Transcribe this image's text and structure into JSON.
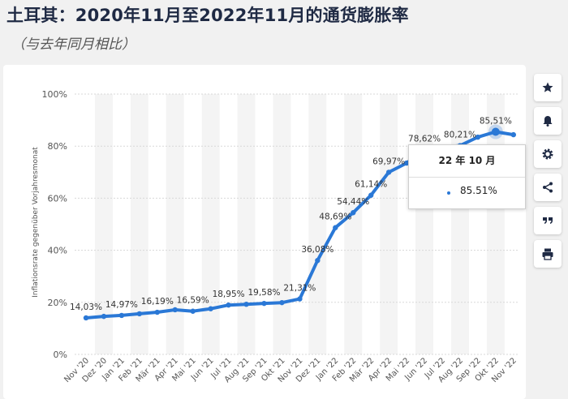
{
  "title": "土耳其：2020年11月至2022年11月的通货膨胀率",
  "subtitle": "（与去年同月相比）",
  "tooltip": {
    "title": "22 年 10 月",
    "value": "85.51%"
  },
  "toolbar": {
    "icons": [
      "star-icon",
      "bell-icon",
      "gear-icon",
      "share-icon",
      "quote-icon",
      "print-icon"
    ]
  },
  "colors": {
    "line": "#2a78d6",
    "band": "#f4f4f4",
    "grid": "#d8d8d8"
  },
  "chart_data": {
    "type": "line",
    "ylabel": "Inflationsrate gegenüber Vorjahresmonat",
    "ylim": [
      0,
      100
    ],
    "yticks": [
      "0%",
      "20%",
      "40%",
      "60%",
      "80%",
      "100%"
    ],
    "grid": true,
    "categories": [
      "Nov '20",
      "Dez '20",
      "Jan '21",
      "Feb '21",
      "Mär '21",
      "Apr '21",
      "Mai '21",
      "Jun '21",
      "Jul '21",
      "Aug '21",
      "Sep '21",
      "Okt '21",
      "Nov '21",
      "Dez '21",
      "Jan '22",
      "Feb '22",
      "Mär '22",
      "Apr '22",
      "Mai '22",
      "Jun '22",
      "Jul '22",
      "Aug '22",
      "Sep '22",
      "Okt '22",
      "Nov '22"
    ],
    "values": [
      14.03,
      14.6,
      14.97,
      15.61,
      16.19,
      17.14,
      16.59,
      17.53,
      18.95,
      19.25,
      19.58,
      19.89,
      21.31,
      36.08,
      48.69,
      54.44,
      61.14,
      69.97,
      73.5,
      78.62,
      79.6,
      80.21,
      83.45,
      85.51,
      84.39
    ],
    "labels": [
      "14,03%",
      "",
      "14,97%",
      "",
      "16,19%",
      "",
      "16,59%",
      "",
      "18,95%",
      "",
      "19,58%",
      "",
      "21,31%",
      "36,08%",
      "48,69%",
      "54,44%",
      "61,14%",
      "69,97%",
      "",
      "78,62%",
      "",
      "80,21%",
      "",
      "85,51%",
      ""
    ],
    "highlight_index": 23
  }
}
